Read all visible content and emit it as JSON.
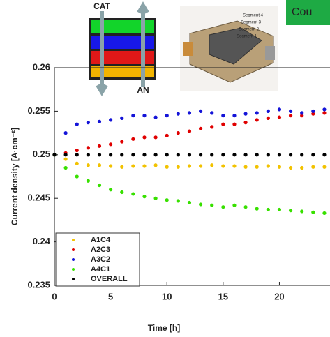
{
  "chart_data": {
    "type": "scatter",
    "xlabel": "Time [h]",
    "ylabel": "Current density [A·cm⁻²]",
    "xlim": [
      0,
      24.5
    ],
    "ylim": [
      0.235,
      0.26
    ],
    "xticks": [
      0,
      5,
      10,
      15,
      20
    ],
    "yticks": [
      0.235,
      0.24,
      0.245,
      0.25,
      0.255,
      0.26
    ],
    "grid": false,
    "legend_position": "lower left",
    "x": [
      0,
      1,
      2,
      3,
      4,
      5,
      6,
      7,
      8,
      9,
      10,
      11,
      12,
      13,
      14,
      15,
      16,
      17,
      18,
      19,
      20,
      21,
      22,
      23,
      24
    ],
    "series": [
      {
        "name": "A1C4",
        "color": "#f2c200",
        "values": [
          0.25,
          0.2495,
          0.249,
          0.2488,
          0.2488,
          0.2487,
          0.2486,
          0.2487,
          0.2487,
          0.2488,
          0.2486,
          0.2486,
          0.2487,
          0.2487,
          0.2488,
          0.2487,
          0.2487,
          0.2486,
          0.2486,
          0.2487,
          0.2486,
          0.2485,
          0.2485,
          0.2486,
          0.2486
        ]
      },
      {
        "name": "A2C3",
        "color": "#e00000",
        "values": [
          0.25,
          0.2502,
          0.2505,
          0.2508,
          0.251,
          0.2512,
          0.2515,
          0.2518,
          0.252,
          0.252,
          0.2522,
          0.2525,
          0.2527,
          0.253,
          0.2532,
          0.2535,
          0.2535,
          0.2537,
          0.254,
          0.2542,
          0.2543,
          0.2545,
          0.2545,
          0.2547,
          0.2548
        ]
      },
      {
        "name": "A3C2",
        "color": "#1414d8",
        "values": [
          0.25,
          0.2525,
          0.2535,
          0.2537,
          0.2538,
          0.254,
          0.2542,
          0.2545,
          0.2545,
          0.2543,
          0.2545,
          0.2547,
          0.2548,
          0.255,
          0.2548,
          0.2545,
          0.2545,
          0.2547,
          0.2548,
          0.255,
          0.2552,
          0.255,
          0.2548,
          0.255,
          0.2552
        ]
      },
      {
        "name": "A4C1",
        "color": "#38e000",
        "values": [
          0.25,
          0.2485,
          0.2475,
          0.247,
          0.2465,
          0.246,
          0.2457,
          0.2455,
          0.2452,
          0.245,
          0.2448,
          0.2447,
          0.2445,
          0.2443,
          0.2442,
          0.244,
          0.2442,
          0.244,
          0.2438,
          0.2437,
          0.2437,
          0.2436,
          0.2435,
          0.2434,
          0.2433
        ]
      },
      {
        "name": "OVERALL",
        "color": "#000000",
        "values": [
          0.25,
          0.25,
          0.25,
          0.25,
          0.25,
          0.25,
          0.25,
          0.25,
          0.25,
          0.25,
          0.25,
          0.25,
          0.25,
          0.25,
          0.25,
          0.25,
          0.25,
          0.25,
          0.25,
          0.25,
          0.25,
          0.25,
          0.25,
          0.25,
          0.25
        ]
      }
    ],
    "annotations": [
      "CAT",
      "AN",
      "Segment 4",
      "Segment 3",
      "Segment 2",
      "Segment 1",
      "Cou"
    ]
  }
}
